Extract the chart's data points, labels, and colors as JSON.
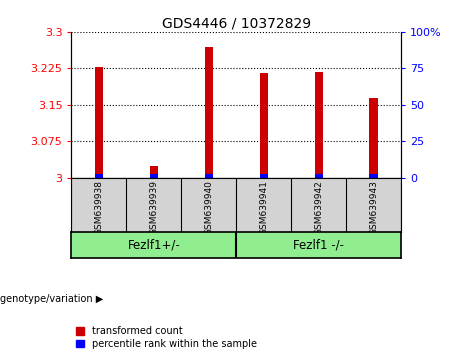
{
  "title": "GDS4446 / 10372829",
  "samples": [
    "GSM639938",
    "GSM639939",
    "GSM639940",
    "GSM639941",
    "GSM639942",
    "GSM639943"
  ],
  "red_values": [
    3.228,
    3.025,
    3.268,
    3.215,
    3.217,
    3.163
  ],
  "blue_values": [
    3.008,
    3.007,
    3.008,
    3.007,
    3.008,
    3.007
  ],
  "ylim_left": [
    3.0,
    3.3
  ],
  "ylim_right": [
    0,
    100
  ],
  "yticks_left": [
    3.0,
    3.075,
    3.15,
    3.225,
    3.3
  ],
  "yticks_right": [
    0,
    25,
    50,
    75,
    100
  ],
  "ytick_labels_left": [
    "3",
    "3.075",
    "3.15",
    "3.225",
    "3.3"
  ],
  "ytick_labels_right": [
    "0",
    "25",
    "50",
    "75",
    "100%"
  ],
  "group1_text": "Fezlf1+/-",
  "group2_text": "Fezlf1 -/-",
  "group_color": "#90EE90",
  "genotype_label": "genotype/variation",
  "legend_red": "transformed count",
  "legend_blue": "percentile rank within the sample",
  "bar_width": 0.15,
  "xlabel_area_color": "#d3d3d3"
}
